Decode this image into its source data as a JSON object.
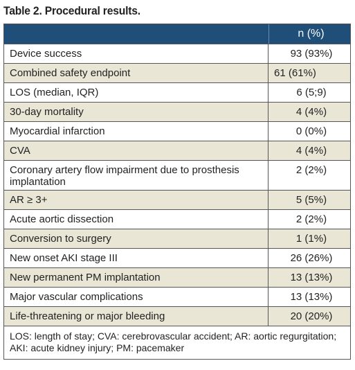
{
  "title": "Table 2. Procedural results.",
  "header": {
    "col1": "",
    "col2": "n (%)"
  },
  "rows": [
    {
      "label": "Device success",
      "value": "93 (93%)"
    },
    {
      "label": "Combined safety endpoint",
      "value": "61 (61%)"
    },
    {
      "label": "LOS (median, IQR)",
      "value": "6 (5;9)"
    },
    {
      "label": "30-day mortality",
      "value": "4 (4%)"
    },
    {
      "label": "Myocardial infarction",
      "value": "0 (0%)"
    },
    {
      "label": "CVA",
      "value": "4 (4%)"
    },
    {
      "label": "Coronary artery flow impairment due to prosthesis implantation",
      "value": "2 (2%)"
    },
    {
      "label": "AR ≥ 3+",
      "value": "5 (5%)"
    },
    {
      "label": "Acute aortic dissection",
      "value": "2 (2%)"
    },
    {
      "label": "Conversion to surgery",
      "value": "1 (1%)"
    },
    {
      "label": "New onset AKI stage III",
      "value": "26 (26%)"
    },
    {
      "label": "New permanent PM implantation",
      "value": "13 (13%)"
    },
    {
      "label": "Major vascular complications",
      "value": "13 (13%)"
    },
    {
      "label": "Life-threatening or major bleeding",
      "value": "20 (20%)"
    }
  ],
  "footnote": "LOS: length of stay; CVA: cerebrovascular accident; AR: aortic regurgitation; AKI: acute kidney injury; PM: pacemaker",
  "colors": {
    "header_bg": "#1f4e79",
    "stripe": "#e9e6d6"
  }
}
